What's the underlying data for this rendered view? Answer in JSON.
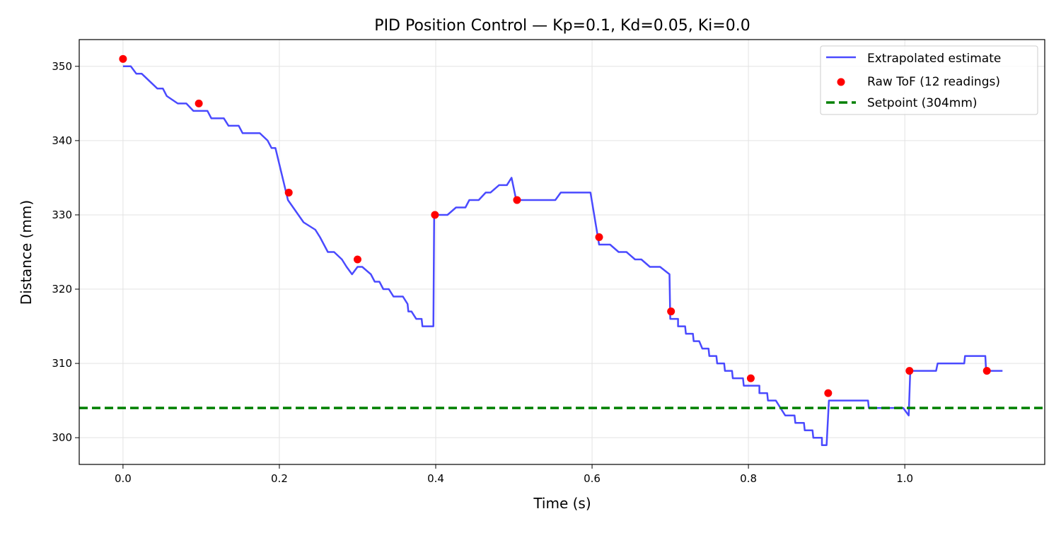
{
  "chart_data": {
    "type": "line",
    "title": "PID Position Control — Kp=0.1, Kd=0.05, Ki=0.0",
    "xlabel": "Time (s)",
    "ylabel": "Distance (mm)",
    "xlim": [
      -0.056,
      1.179
    ],
    "ylim": [
      296.4,
      353.6
    ],
    "xticks": [
      0.0,
      0.2,
      0.4,
      0.6,
      0.8,
      1.0
    ],
    "xtick_labels": [
      "0.0",
      "0.2",
      "0.4",
      "0.6",
      "0.8",
      "1.0"
    ],
    "yticks": [
      300,
      310,
      320,
      330,
      340,
      350
    ],
    "ytick_labels": [
      "300",
      "310",
      "320",
      "330",
      "340",
      "350"
    ],
    "grid": true,
    "legend_position": "top-right",
    "series": [
      {
        "name": "Extrapolated estimate",
        "kind": "line",
        "color": "#4a4aff",
        "points": [
          [
            0.0,
            350
          ],
          [
            0.01,
            350
          ],
          [
            0.017,
            349
          ],
          [
            0.024,
            349
          ],
          [
            0.044,
            347
          ],
          [
            0.051,
            347
          ],
          [
            0.056,
            346
          ],
          [
            0.07,
            345
          ],
          [
            0.081,
            345
          ],
          [
            0.09,
            344
          ],
          [
            0.108,
            344
          ],
          [
            0.113,
            343
          ],
          [
            0.129,
            343
          ],
          [
            0.135,
            342
          ],
          [
            0.148,
            342
          ],
          [
            0.153,
            341
          ],
          [
            0.175,
            341
          ],
          [
            0.185,
            340
          ],
          [
            0.19,
            339
          ],
          [
            0.195,
            339
          ],
          [
            0.211,
            332
          ],
          [
            0.231,
            329
          ],
          [
            0.246,
            328
          ],
          [
            0.252,
            327
          ],
          [
            0.262,
            325
          ],
          [
            0.27,
            325
          ],
          [
            0.28,
            324
          ],
          [
            0.286,
            323
          ],
          [
            0.293,
            322
          ],
          [
            0.3,
            323
          ],
          [
            0.306,
            323
          ],
          [
            0.317,
            322
          ],
          [
            0.322,
            321
          ],
          [
            0.328,
            321
          ],
          [
            0.333,
            320
          ],
          [
            0.34,
            320
          ],
          [
            0.346,
            319
          ],
          [
            0.358,
            319
          ],
          [
            0.364,
            318
          ],
          [
            0.365,
            317
          ],
          [
            0.369,
            317
          ],
          [
            0.375,
            316
          ],
          [
            0.382,
            316
          ],
          [
            0.383,
            315
          ],
          [
            0.397,
            315
          ],
          [
            0.398,
            330
          ],
          [
            0.415,
            330
          ],
          [
            0.426,
            331
          ],
          [
            0.438,
            331
          ],
          [
            0.443,
            332
          ],
          [
            0.455,
            332
          ],
          [
            0.464,
            333
          ],
          [
            0.47,
            333
          ],
          [
            0.481,
            334
          ],
          [
            0.491,
            334
          ],
          [
            0.497,
            335
          ],
          [
            0.503,
            332
          ],
          [
            0.553,
            332
          ],
          [
            0.56,
            333
          ],
          [
            0.598,
            333
          ],
          [
            0.609,
            326
          ],
          [
            0.623,
            326
          ],
          [
            0.634,
            325
          ],
          [
            0.644,
            325
          ],
          [
            0.655,
            324
          ],
          [
            0.663,
            324
          ],
          [
            0.674,
            323
          ],
          [
            0.687,
            323
          ],
          [
            0.699,
            322
          ],
          [
            0.7,
            316
          ],
          [
            0.71,
            316
          ],
          [
            0.71,
            315
          ],
          [
            0.719,
            315
          ],
          [
            0.72,
            314
          ],
          [
            0.729,
            314
          ],
          [
            0.73,
            313
          ],
          [
            0.737,
            313
          ],
          [
            0.741,
            312
          ],
          [
            0.749,
            312
          ],
          [
            0.75,
            311
          ],
          [
            0.759,
            311
          ],
          [
            0.76,
            310
          ],
          [
            0.769,
            310
          ],
          [
            0.77,
            309
          ],
          [
            0.779,
            309
          ],
          [
            0.78,
            308
          ],
          [
            0.793,
            308
          ],
          [
            0.794,
            307
          ],
          [
            0.814,
            307
          ],
          [
            0.814,
            306
          ],
          [
            0.824,
            306
          ],
          [
            0.825,
            305
          ],
          [
            0.835,
            305
          ],
          [
            0.841,
            304
          ],
          [
            0.847,
            303
          ],
          [
            0.859,
            303
          ],
          [
            0.86,
            302
          ],
          [
            0.871,
            302
          ],
          [
            0.872,
            301
          ],
          [
            0.882,
            301
          ],
          [
            0.883,
            300
          ],
          [
            0.894,
            300
          ],
          [
            0.894,
            299
          ],
          [
            0.9,
            299
          ],
          [
            0.903,
            305
          ],
          [
            0.953,
            305
          ],
          [
            0.954,
            304
          ],
          [
            0.998,
            304
          ],
          [
            1.005,
            303
          ],
          [
            1.007,
            309
          ],
          [
            1.04,
            309
          ],
          [
            1.042,
            310
          ],
          [
            1.076,
            310
          ],
          [
            1.077,
            311
          ],
          [
            1.103,
            311
          ],
          [
            1.104,
            309
          ],
          [
            1.125,
            309
          ]
        ]
      },
      {
        "name": "Raw ToF (12 readings)",
        "kind": "scatter",
        "color": "#ff0000",
        "points": [
          [
            0.0,
            351
          ],
          [
            0.097,
            345
          ],
          [
            0.212,
            333
          ],
          [
            0.3,
            324
          ],
          [
            0.399,
            330
          ],
          [
            0.504,
            332
          ],
          [
            0.609,
            327
          ],
          [
            0.701,
            317
          ],
          [
            0.803,
            308
          ],
          [
            0.902,
            306
          ],
          [
            1.006,
            309
          ],
          [
            1.105,
            309
          ]
        ]
      },
      {
        "name": "Setpoint (304mm)",
        "kind": "hline",
        "color": "#008000",
        "value": 304
      }
    ]
  }
}
